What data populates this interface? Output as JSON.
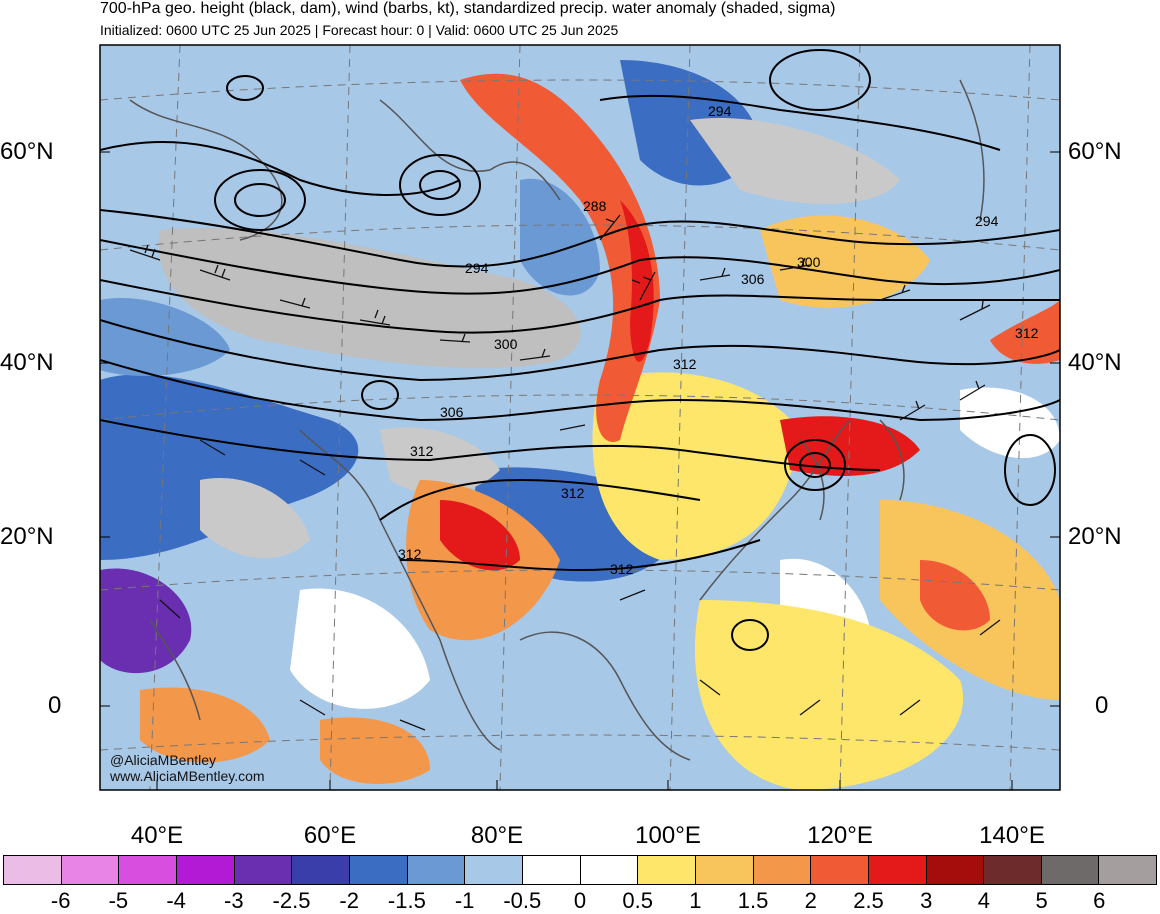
{
  "title": "700-hPa geo. height (black, dam), wind (barbs, kt), standardized precip. water anomaly (shaded, sigma)",
  "subtitle": "Initialized: 0600 UTC 25 Jun 2025 | Forecast hour: 0 | Valid: 0600 UTC 25 Jun 2025",
  "lat_labels": [
    "60°N",
    "40°N",
    "20°N",
    "0"
  ],
  "lon_labels": [
    "40°E",
    "60°E",
    "80°E",
    "100°E",
    "120°E",
    "140°E"
  ],
  "contour_labels": [
    "294",
    "288",
    "294",
    "300",
    "306",
    "300",
    "294",
    "312",
    "306",
    "312",
    "312",
    "312",
    "312",
    "312"
  ],
  "credit": {
    "handle": "@AliciaMBentley",
    "website": "www.AliciaMBentley.com"
  },
  "colorbar": {
    "labels": [
      "-6",
      "-5",
      "-4",
      "-3",
      "-2.5",
      "-2",
      "-1.5",
      "-1",
      "-0.5",
      "0",
      "0.5",
      "1",
      "1.5",
      "2",
      "2.5",
      "3",
      "4",
      "5",
      "6"
    ],
    "colors": [
      "#ebbde6",
      "#e884e6",
      "#d84fe0",
      "#b21ad6",
      "#6a2fb0",
      "#3a3eab",
      "#3b6dc3",
      "#6b99d3",
      "#a8c8e8",
      "#ffffff",
      "#ffffff",
      "#fde66a",
      "#f8c45c",
      "#f3974a",
      "#f05b35",
      "#e41a1a",
      "#a50d0d",
      "#6e2b2b",
      "#6e6a6a",
      "#a59e9e"
    ]
  }
}
